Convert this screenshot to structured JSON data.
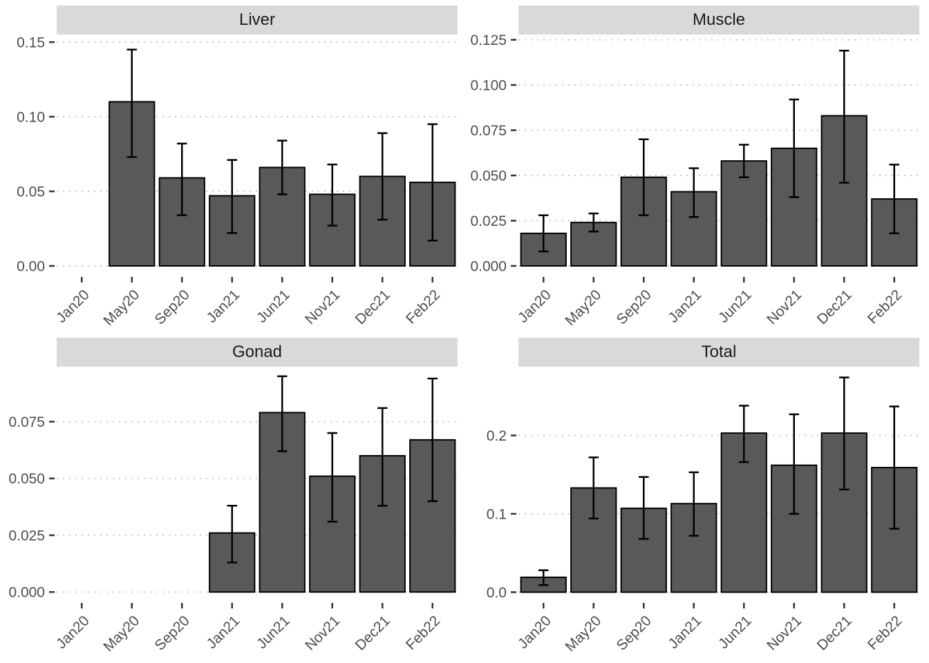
{
  "style": {
    "background": "#FFFFFF",
    "bar_fill": "#595959",
    "bar_stroke": "#000000",
    "error_bar_color": "#000000",
    "strip_bg": "#D9D9D9",
    "strip_text_color": "#1A1A1A",
    "axis_text_color": "#4D4D4D",
    "tick_color": "#333333",
    "grid_color": "#C8C8C8"
  },
  "categories": [
    "Jan20",
    "May20",
    "Sep20",
    "Jan21",
    "Jun21",
    "Nov21",
    "Dec21",
    "Feb22"
  ],
  "chart_data": [
    {
      "type": "bar",
      "title": "Liver",
      "xlabel": "",
      "ylabel": "",
      "legend": "none",
      "grid": "dotted-major-horizontal",
      "categories": [
        "Jan20",
        "May20",
        "Sep20",
        "Jan21",
        "Jun21",
        "Nov21",
        "Dec21",
        "Feb22"
      ],
      "values": [
        null,
        0.11,
        0.059,
        0.047,
        0.066,
        0.048,
        0.06,
        0.056
      ],
      "error_low": [
        null,
        0.073,
        0.034,
        0.022,
        0.048,
        0.027,
        0.031,
        0.017
      ],
      "error_high": [
        null,
        0.145,
        0.082,
        0.071,
        0.084,
        0.068,
        0.089,
        0.095
      ],
      "ytick_values": [
        0.0,
        0.05,
        0.1,
        0.15
      ],
      "ytick_labels": [
        "0.00",
        "0.05",
        "0.10",
        "0.15"
      ],
      "yrange": [
        -0.0074,
        0.1551
      ]
    },
    {
      "type": "bar",
      "title": "Muscle",
      "xlabel": "",
      "ylabel": "",
      "legend": "none",
      "grid": "dotted-major-horizontal",
      "categories": [
        "Jan20",
        "May20",
        "Sep20",
        "Jan21",
        "Jun21",
        "Nov21",
        "Dec21",
        "Feb22"
      ],
      "values": [
        0.018,
        0.024,
        0.049,
        0.041,
        0.058,
        0.065,
        0.083,
        0.037
      ],
      "error_low": [
        0.008,
        0.019,
        0.028,
        0.027,
        0.049,
        0.038,
        0.046,
        0.018
      ],
      "error_high": [
        0.028,
        0.029,
        0.07,
        0.054,
        0.067,
        0.092,
        0.119,
        0.056
      ],
      "ytick_values": [
        0.0,
        0.025,
        0.05,
        0.075,
        0.1,
        0.125
      ],
      "ytick_labels": [
        "0.000",
        "0.025",
        "0.050",
        "0.075",
        "0.100",
        "0.125"
      ],
      "yrange": [
        -0.0061,
        0.1279
      ]
    },
    {
      "type": "bar",
      "title": "Gonad",
      "xlabel": "",
      "ylabel": "",
      "legend": "none",
      "grid": "dotted-major-horizontal",
      "categories": [
        "Jan20",
        "May20",
        "Sep20",
        "Jan21",
        "Jun21",
        "Nov21",
        "Dec21",
        "Feb22"
      ],
      "values": [
        null,
        null,
        null,
        0.026,
        0.079,
        0.051,
        0.06,
        0.067
      ],
      "error_low": [
        null,
        null,
        null,
        0.013,
        0.062,
        0.031,
        0.038,
        0.04
      ],
      "error_high": [
        null,
        null,
        null,
        0.038,
        0.095,
        0.07,
        0.081,
        0.094
      ],
      "ytick_values": [
        0.0,
        0.025,
        0.05,
        0.075
      ],
      "ytick_labels": [
        "0.000",
        "0.025",
        "0.050",
        "0.075"
      ],
      "yrange": [
        -0.0048,
        0.0992
      ]
    },
    {
      "type": "bar",
      "title": "Total",
      "xlabel": "",
      "ylabel": "",
      "legend": "none",
      "grid": "dotted-major-horizontal",
      "categories": [
        "Jan20",
        "May20",
        "Sep20",
        "Jan21",
        "Jun21",
        "Nov21",
        "Dec21",
        "Feb22"
      ],
      "values": [
        0.019,
        0.133,
        0.107,
        0.113,
        0.203,
        0.162,
        0.203,
        0.159
      ],
      "error_low": [
        0.009,
        0.094,
        0.068,
        0.072,
        0.166,
        0.1,
        0.131,
        0.081
      ],
      "error_high": [
        0.028,
        0.172,
        0.147,
        0.153,
        0.238,
        0.227,
        0.274,
        0.237
      ],
      "ytick_values": [
        0.0,
        0.1,
        0.2
      ],
      "ytick_labels": [
        "0.0",
        "0.1",
        "0.2"
      ],
      "yrange": [
        -0.0137,
        0.2877
      ]
    }
  ]
}
